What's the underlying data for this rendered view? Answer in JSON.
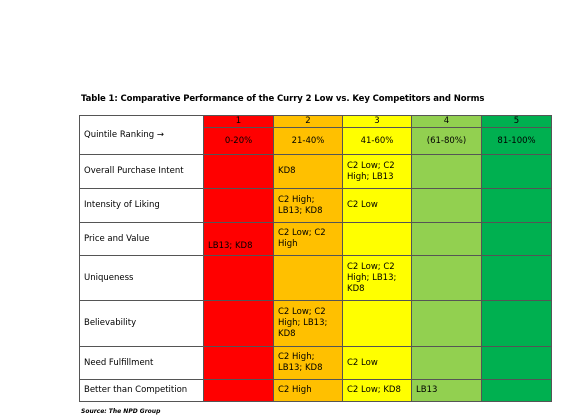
{
  "title": "Table 1: Comparative Performance of the Curry 2 Low vs. Key Competitors and Norms",
  "quintile_label": "Quintile Ranking",
  "arrow": "→",
  "columns": [
    {
      "number": "1",
      "range": "0-20%",
      "color": "#ff0000"
    },
    {
      "number": "2",
      "range": "21-40%",
      "color": "#ffc000"
    },
    {
      "number": "3",
      "range": "41-60%",
      "color": "#ffff00"
    },
    {
      "number": "4",
      "range": "(61-80%)",
      "color": "#92d050"
    },
    {
      "number": "5",
      "range": "81-100%",
      "color": "#00b050"
    }
  ],
  "rows": [
    {
      "label": "Overall Purchase Intent",
      "cells": [
        "",
        "KD8",
        "C2 Low; C2 High; LB13",
        "",
        ""
      ]
    },
    {
      "label": "Intensity of Liking",
      "cells": [
        "",
        "C2 High; LB13; KD8",
        "C2 Low",
        "",
        ""
      ]
    },
    {
      "label": "Price and Value",
      "cells": [
        "LB13; KD8",
        "C2 Low; C2 High",
        "",
        "",
        ""
      ]
    },
    {
      "label": "Uniqueness",
      "cells": [
        "",
        "",
        "C2 Low; C2 High; LB13; KD8",
        "",
        ""
      ]
    },
    {
      "label": "Believability",
      "cells": [
        "",
        "C2 Low; C2 High; LB13; KD8",
        "",
        "",
        ""
      ]
    },
    {
      "label": "Need Fulfillment",
      "cells": [
        "",
        "C2 High; LB13; KD8",
        "C2 Low",
        "",
        ""
      ]
    },
    {
      "label": "Better than Competition",
      "cells": [
        "",
        "C2 High",
        "C2 Low; KD8",
        "LB13",
        ""
      ]
    }
  ],
  "source": "Source: The NPD Group"
}
